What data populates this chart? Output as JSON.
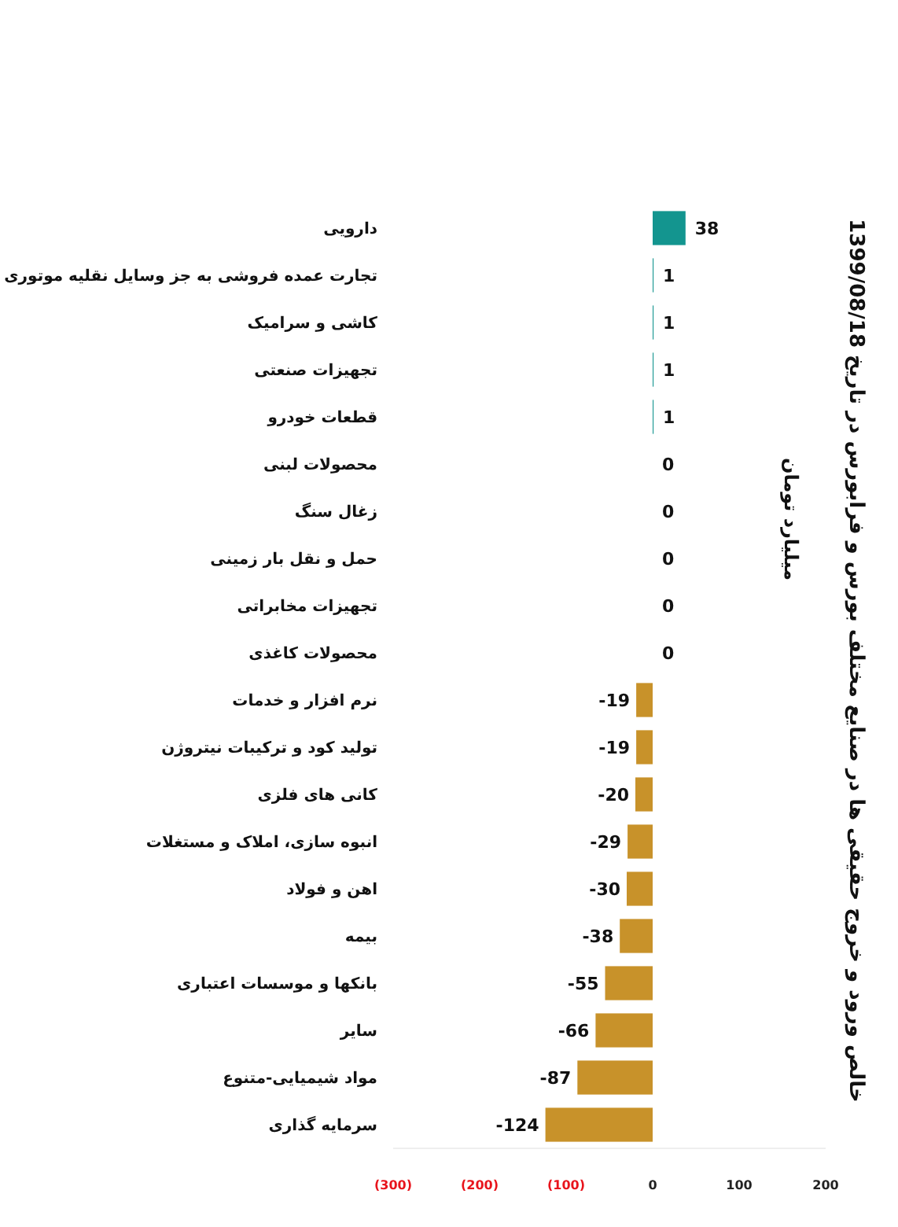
{
  "chart_data": {
    "type": "bar",
    "orientation": "horizontal",
    "title": "خالص ورود و خروج حقیقی ها در صنایع مختلف  بورس و فرابورس در تاریخ 1399/08/18",
    "subtitle": "میلیارد تومان",
    "categories": [
      "دارویی",
      "تجارت عمده فروشی به جز وسایل نقلیه موتوری",
      "کاشی و سرامیک",
      "تجهیزات صنعتی",
      "قطعات خودرو",
      "محصولات لبنی",
      "زغال سنگ",
      "حمل و نقل بار زمینی",
      "تجهیزات مخابراتی",
      "محصولات کاغذی",
      "نرم افزار و خدمات",
      "تولید کود و ترکیبات نیتروژن",
      "کانی های فلزی",
      "انبوه سازی، املاک و مستغلات",
      "اهن و فولاد",
      "بیمه",
      "بانکها و موسسات اعتباری",
      "سایر",
      "مواد شیمیایی-متنوع",
      "سرمایه گذاری"
    ],
    "values": [
      38,
      1,
      1,
      1,
      1,
      0,
      0,
      0,
      0,
      0,
      -19,
      -19,
      -20,
      -29,
      -30,
      -38,
      -55,
      -66,
      -87,
      -124
    ],
    "colors": [
      "#13958f",
      "#13958f",
      "#13958f",
      "#13958f",
      "#13958f",
      "#13958f",
      "#13958f",
      "#13958f",
      "#13958f",
      "#13958f",
      "#c8922a",
      "#c8922a",
      "#c8922a",
      "#c8922a",
      "#c8922a",
      "#c8922a",
      "#c8922a",
      "#c8922a",
      "#c8922a",
      "#c8922a"
    ],
    "xlim": [
      -300,
      200
    ],
    "xticks": [
      {
        "value": -300,
        "label": "(300)"
      },
      {
        "value": -200,
        "label": "(200)"
      },
      {
        "value": -100,
        "label": "(100)"
      },
      0,
      100,
      200
    ],
    "data_labels": true
  }
}
